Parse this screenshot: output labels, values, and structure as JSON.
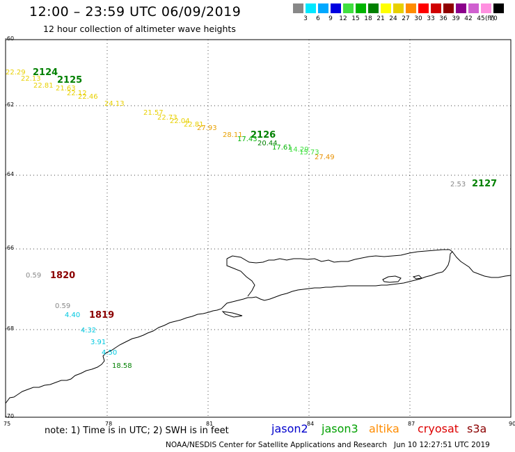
{
  "header": {
    "title": "12:00 – 23:59 UTC 06/09/2019",
    "subtitle": "12 hour collection of altimeter wave heights"
  },
  "color_scale": {
    "unit_label": "(ft)",
    "bins": [
      {
        "label": "3",
        "color": "#888888"
      },
      {
        "label": "6",
        "color": "#00e8ff"
      },
      {
        "label": "9",
        "color": "#00a8ff"
      },
      {
        "label": "12",
        "color": "#0000e0"
      },
      {
        "label": "15",
        "color": "#40e040"
      },
      {
        "label": "18",
        "color": "#00b400"
      },
      {
        "label": "21",
        "color": "#008000"
      },
      {
        "label": "24",
        "color": "#ffff00"
      },
      {
        "label": "27",
        "color": "#e8d000"
      },
      {
        "label": "30",
        "color": "#ff8c00"
      },
      {
        "label": "33",
        "color": "#ff0000"
      },
      {
        "label": "36",
        "color": "#d00000"
      },
      {
        "label": "39",
        "color": "#900000"
      },
      {
        "label": "42",
        "color": "#8b008b"
      },
      {
        "label": "45",
        "color": "#d060d0"
      },
      {
        "label": "70",
        "color": "#ff90e0"
      },
      {
        "label": "",
        "color": "#000000"
      }
    ]
  },
  "axes": {
    "lat_labels": [
      "-60",
      "-62",
      "-64",
      "-66",
      "-68",
      "-70"
    ],
    "lon_labels": [
      "75",
      "78",
      "81",
      "84",
      "87",
      "90"
    ]
  },
  "track_labels": [
    {
      "text": "2124",
      "color": "#008000"
    },
    {
      "text": "2125",
      "color": "#008000"
    },
    {
      "text": "2126",
      "color": "#008000"
    },
    {
      "text": "2127",
      "color": "#008000"
    },
    {
      "text": "1820",
      "color": "#8b0000"
    },
    {
      "text": "1819",
      "color": "#8b0000"
    }
  ],
  "wave_heights": [
    {
      "text": "22.29",
      "color": "#e8d000"
    },
    {
      "text": "22.13",
      "color": "#e8d000"
    },
    {
      "text": "22.81",
      "color": "#e8d000"
    },
    {
      "text": "21.63",
      "color": "#e8d000"
    },
    {
      "text": "22.12",
      "color": "#e8d000"
    },
    {
      "text": "22.46",
      "color": "#e8d000"
    },
    {
      "text": "24.13",
      "color": "#e8d000"
    },
    {
      "text": "21.57",
      "color": "#e8d000"
    },
    {
      "text": "22.73",
      "color": "#e8d000"
    },
    {
      "text": "22.04",
      "color": "#e8d000"
    },
    {
      "text": "22.81",
      "color": "#e8d000"
    },
    {
      "text": "27.93",
      "color": "#e8a000"
    },
    {
      "text": "28.11",
      "color": "#e8a000"
    },
    {
      "text": "17.43",
      "color": "#00b400"
    },
    {
      "text": "20.44",
      "color": "#008000"
    },
    {
      "text": "17.61",
      "color": "#00b400"
    },
    {
      "text": "14.29",
      "color": "#40e040"
    },
    {
      "text": "15.73",
      "color": "#40e040"
    },
    {
      "text": "27.49",
      "color": "#e89000"
    },
    {
      "text": "2.53",
      "color": "#888888"
    },
    {
      "text": "0.59",
      "color": "#888888"
    },
    {
      "text": "0.59",
      "color": "#888888"
    },
    {
      "text": "4.40",
      "color": "#00c8e0"
    },
    {
      "text": "4.32",
      "color": "#00c8e0"
    },
    {
      "text": "3.91",
      "color": "#00c8e0"
    },
    {
      "text": "4.50",
      "color": "#00c8e0"
    },
    {
      "text": "18.58",
      "color": "#008000"
    }
  ],
  "footer": {
    "note": "note: 1) Time is in UTC; 2) SWH is in feet",
    "satellites": [
      {
        "name": "jason2",
        "color": "#0000cc"
      },
      {
        "name": "jason3",
        "color": "#00a000"
      },
      {
        "name": "altika",
        "color": "#ff8c00"
      },
      {
        "name": "cryosat",
        "color": "#dd0000"
      },
      {
        "name": "s3a",
        "color": "#8b0000"
      }
    ],
    "credit": "NOAA/NESDIS Center for Satellite Applications and Research",
    "timestamp": "Jun 10 12:27:51 UTC 2019"
  }
}
